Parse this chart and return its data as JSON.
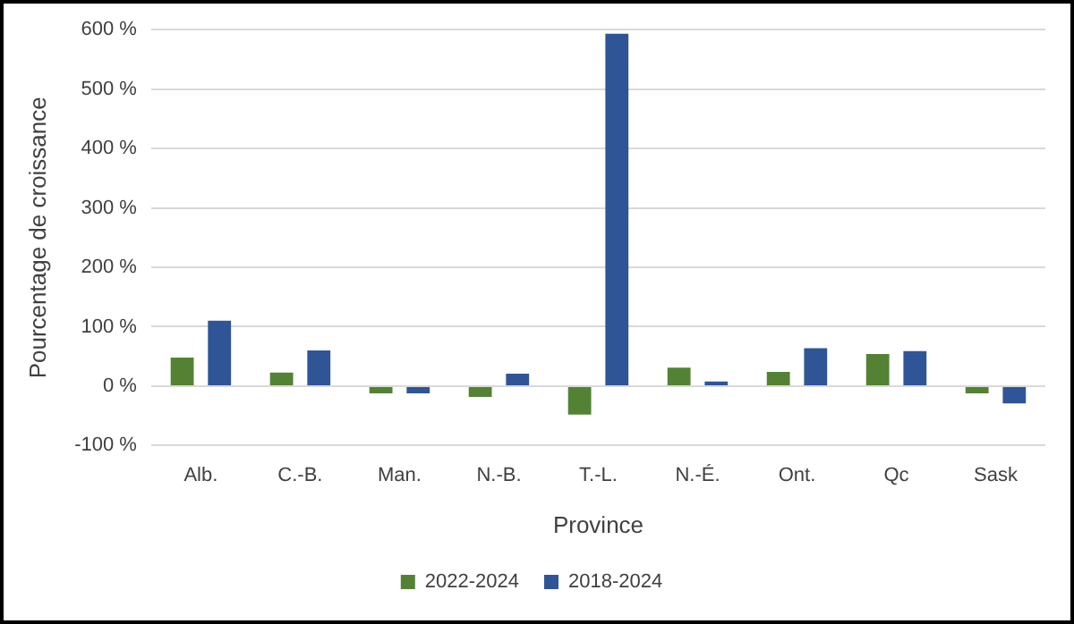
{
  "chart_data": {
    "type": "bar",
    "xlabel": "Province",
    "ylabel": "Pourcentage de croissance",
    "categories": [
      "Alb.",
      "C.-B.",
      "Man.",
      "N.-B.",
      "T.-L.",
      "N.-É.",
      "Ont.",
      "Qc",
      "Sask"
    ],
    "series": [
      {
        "name": "2022-2024",
        "color": "#548235",
        "values": [
          48,
          23,
          -12,
          -18,
          -48,
          31,
          24,
          54,
          -12
        ]
      },
      {
        "name": "2018-2024",
        "color": "#2f5597",
        "values": [
          110,
          60,
          -12,
          21,
          593,
          8,
          64,
          59,
          -29
        ]
      }
    ],
    "ylim": [
      -100,
      600
    ],
    "yticks": [
      {
        "value": -100,
        "label": "-100 %"
      },
      {
        "value": 0,
        "label": "0 %"
      },
      {
        "value": 100,
        "label": "100 %"
      },
      {
        "value": 200,
        "label": "200 %"
      },
      {
        "value": 300,
        "label": "300 %"
      },
      {
        "value": 400,
        "label": "400 %"
      },
      {
        "value": 500,
        "label": "500 %"
      },
      {
        "value": 600,
        "label": "600 %"
      }
    ],
    "grid": "y",
    "legend": "bottom"
  }
}
